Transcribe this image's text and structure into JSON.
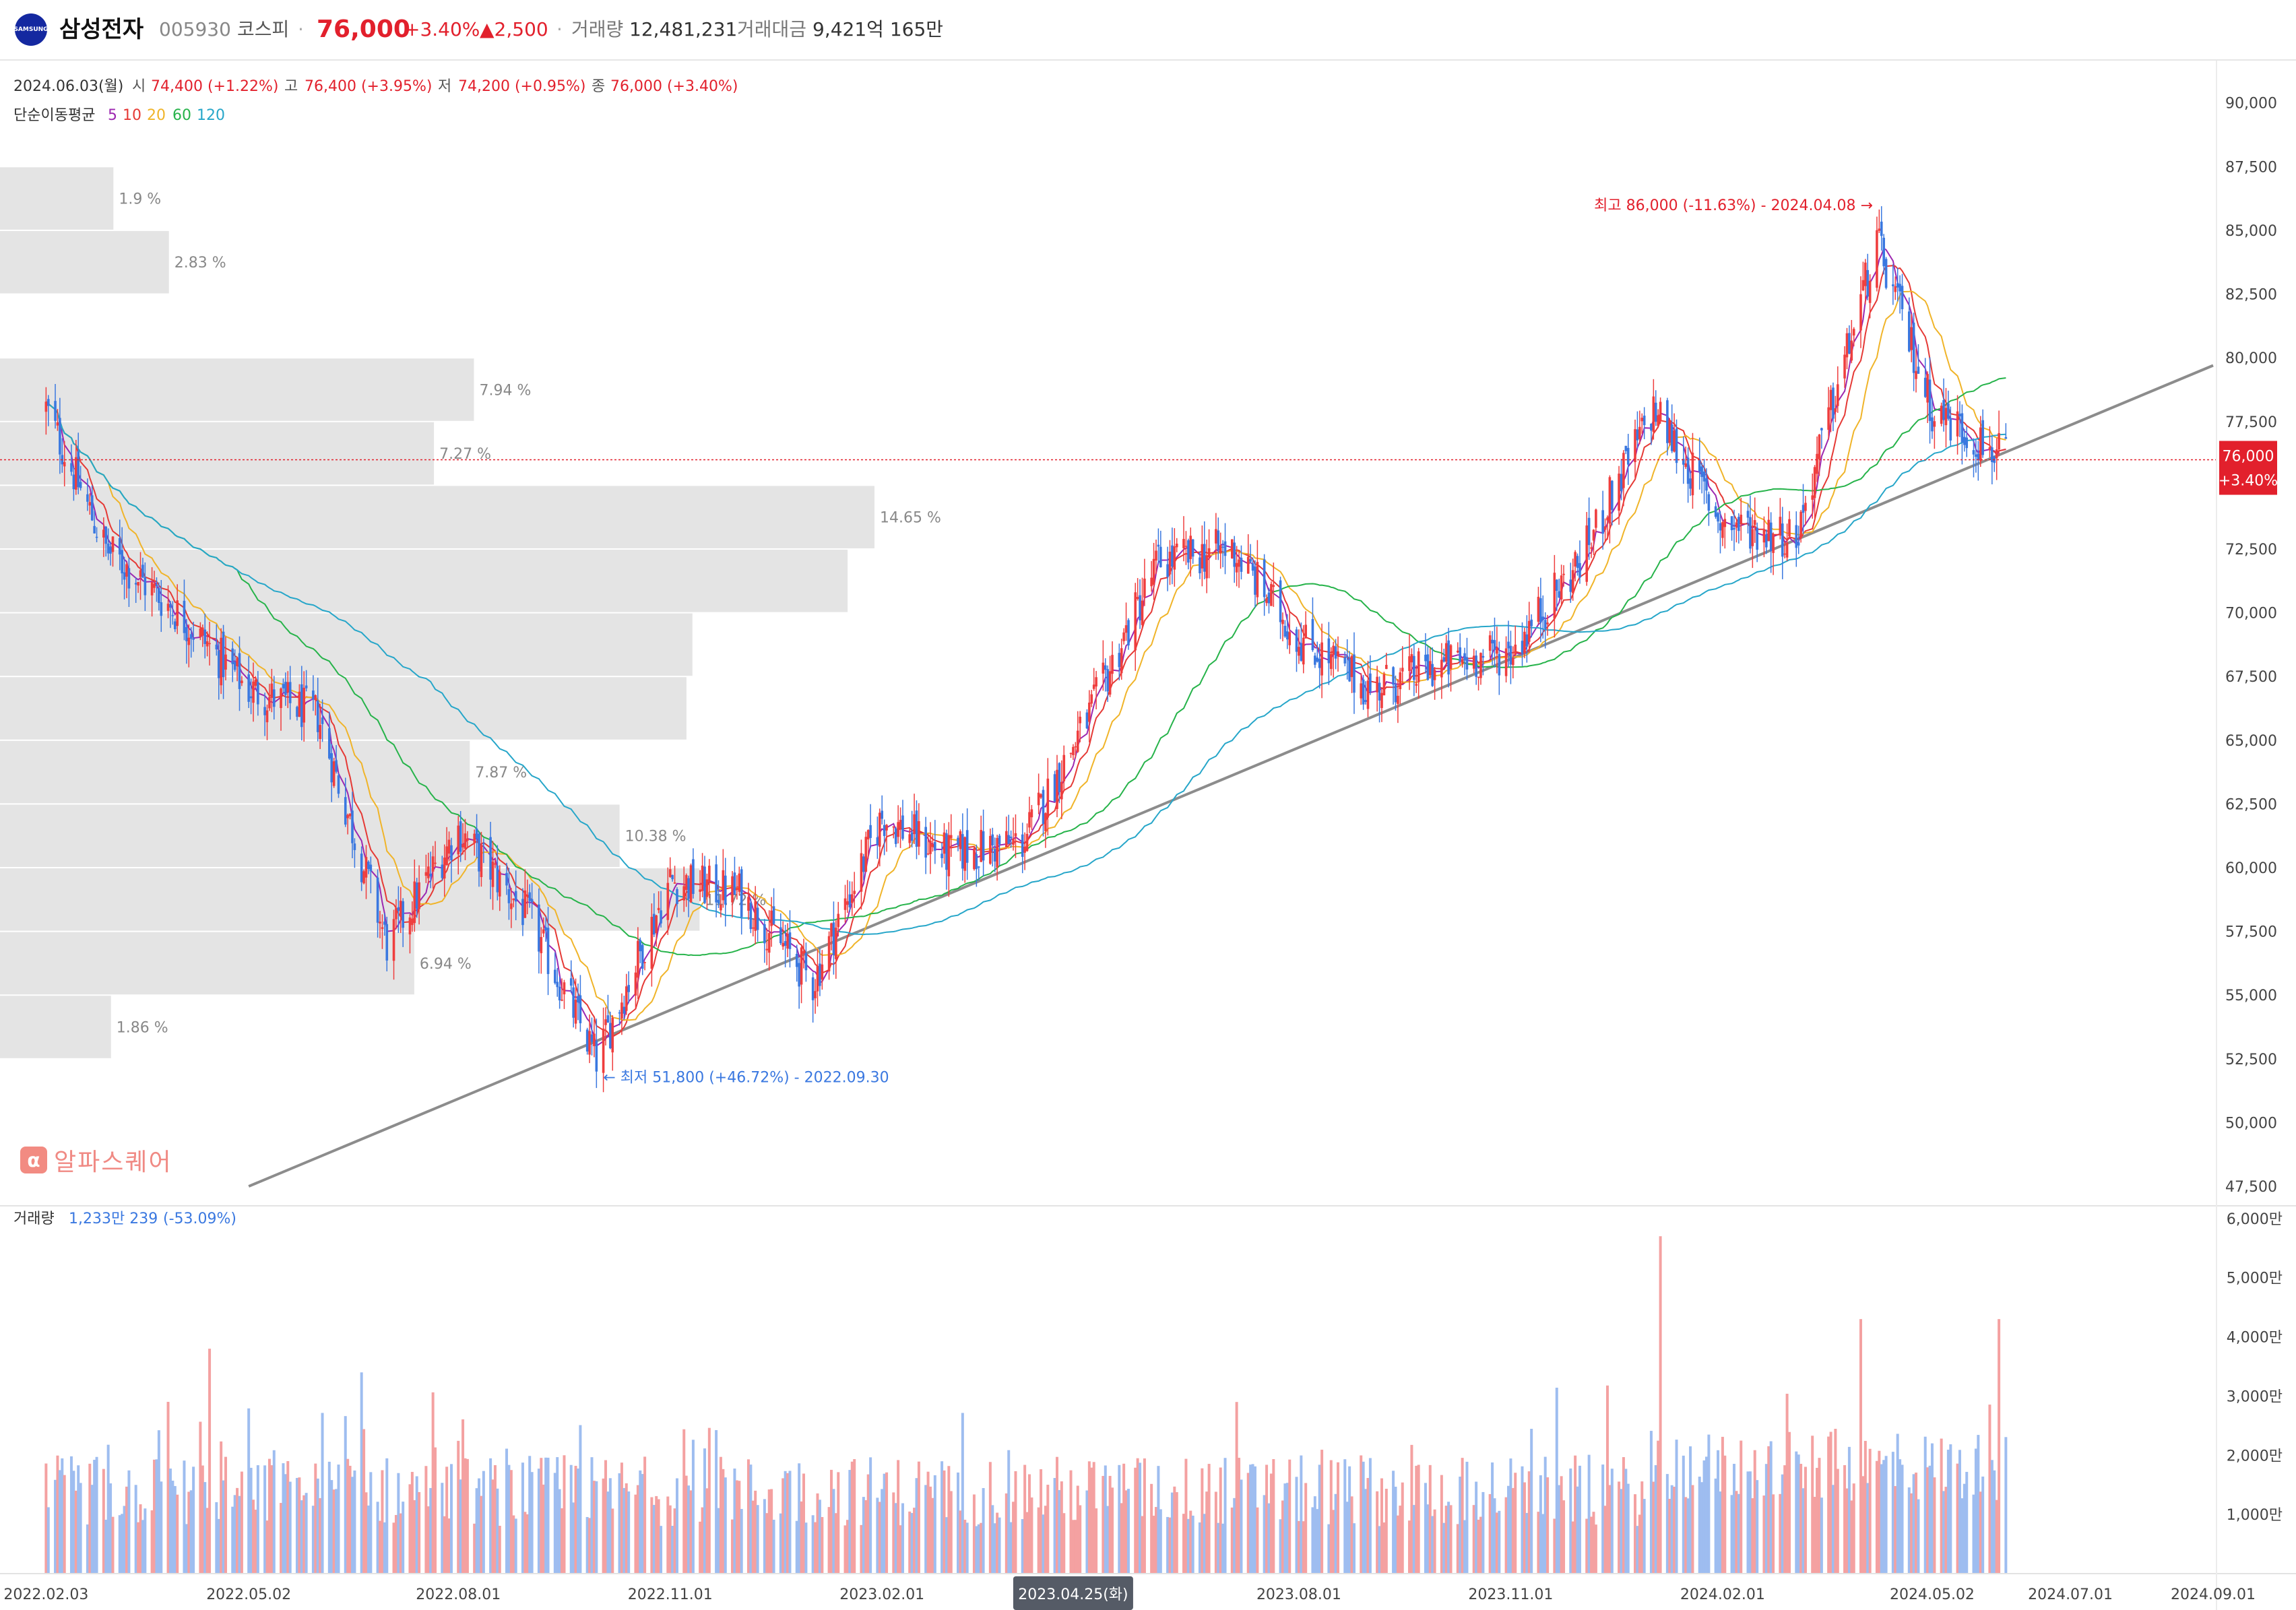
{
  "header": {
    "logo_text": "SAMSUNG",
    "name": "삼성전자",
    "code": "005930",
    "market": "코스피",
    "separator": "·",
    "price": "76,000",
    "change_rate": "+3.40%",
    "change": "▲2,500",
    "volume_label": "거래량",
    "volume": "12,481,231",
    "amount_label": "거래대금",
    "amount": "9,421억 165만"
  },
  "ohlc": {
    "date": "2024.06.03(월)",
    "open_label": "시",
    "open": "74,400 (+1.22%)",
    "high_label": "고",
    "high": "76,400 (+3.95%)",
    "low_label": "저",
    "low": "74,200 (+0.95%)",
    "close_label": "종",
    "close": "76,000 (+3.40%)"
  },
  "ma_legend": {
    "label": "단순이동평균",
    "items": [
      {
        "period": "5",
        "color": "#9c27b0"
      },
      {
        "period": "10",
        "color": "#e53935"
      },
      {
        "period": "20",
        "color": "#f0b429"
      },
      {
        "period": "60",
        "color": "#26b34a"
      },
      {
        "period": "120",
        "color": "#26a6c9"
      }
    ]
  },
  "volume_legend": {
    "label": "거래량",
    "value": "1,233만 239",
    "rate": "(-53.09%)"
  },
  "watermark": {
    "mark": "α",
    "text": "알파스퀘어"
  },
  "current_price_label": {
    "price": "76,000",
    "rate": "+3.40%"
  },
  "crosshair_date_label": "2023.04.25(화)",
  "colors": {
    "up": "#ef3e3e",
    "down": "#3a78e0",
    "up_volume": "#f4a1a1",
    "down_volume": "#9ebdf0",
    "profile": "#e4e4e4",
    "trendline": "#8c8c8c",
    "price_line": "#e2202c"
  },
  "chart_data": {
    "type": "candlestick",
    "price_axis": {
      "min": 47500,
      "max": 90000,
      "ticks": [
        "47,500",
        "50,000",
        "52,500",
        "55,000",
        "57,500",
        "60,000",
        "62,500",
        "65,000",
        "67,500",
        "70,000",
        "72,500",
        "75,000",
        "77,500",
        "80,000",
        "82,500",
        "85,000",
        "87,500",
        "90,000"
      ]
    },
    "time_axis": {
      "ticks": [
        "2022.02.03",
        "2022.05.02",
        "2022.08.01",
        "2022.11.01",
        "2023.02.01",
        "2023.08.01",
        "2023.11.01",
        "2024.02.01",
        "2024.05.02",
        "2024.07.01",
        "2024.09.01"
      ]
    },
    "price_path": [
      [
        "2022.02.03",
        78000
      ],
      [
        "2022.03.01",
        72500
      ],
      [
        "2022.04.01",
        70000
      ],
      [
        "2022.05.02",
        67000
      ],
      [
        "2022.06.01",
        66000
      ],
      [
        "2022.07.01",
        57000
      ],
      [
        "2022.08.01",
        61500
      ],
      [
        "2022.09.01",
        58000
      ],
      [
        "2022.09.30",
        52500
      ],
      [
        "2022.11.01",
        59500
      ],
      [
        "2022.12.01",
        59000
      ],
      [
        "2023.01.02",
        55500
      ],
      [
        "2023.02.01",
        62000
      ],
      [
        "2023.03.01",
        60500
      ],
      [
        "2023.04.03",
        61000
      ],
      [
        "2023.05.02",
        66000
      ],
      [
        "2023.06.01",
        72000
      ],
      [
        "2023.07.03",
        72500
      ],
      [
        "2023.08.01",
        69000
      ],
      [
        "2023.09.01",
        67000
      ],
      [
        "2023.10.04",
        68000
      ],
      [
        "2023.11.01",
        68500
      ],
      [
        "2023.12.01",
        72000
      ],
      [
        "2024.01.02",
        78000
      ],
      [
        "2024.02.01",
        73500
      ],
      [
        "2024.03.04",
        73000
      ],
      [
        "2024.04.08",
        84500
      ],
      [
        "2024.05.02",
        78000
      ],
      [
        "2024.06.03",
        76000
      ]
    ],
    "annotations": {
      "high": "최고 86,000 (-11.63%) - 2024.04.08",
      "low": "최저 51,800 (+46.72%) - 2022.09.30"
    },
    "trendline": {
      "from": [
        "2022.05.02",
        47500
      ],
      "to": [
        "2024.09.01",
        79700
      ]
    },
    "volume_profile": [
      {
        "low": 85000,
        "high": 87500,
        "pct": "1.9 %",
        "share": 1.9
      },
      {
        "low": 82500,
        "high": 85000,
        "pct": "2.83 %",
        "share": 2.83
      },
      {
        "low": 77500,
        "high": 80000,
        "pct": "7.94 %",
        "share": 7.94
      },
      {
        "low": 75000,
        "high": 77500,
        "pct": "7.27 %",
        "share": 7.27
      },
      {
        "low": 72500,
        "high": 75000,
        "pct": "14.65 %",
        "share": 14.65
      },
      {
        "low": 70000,
        "high": 72500,
        "pct": "",
        "share": 14.2
      },
      {
        "low": 67500,
        "high": 70000,
        "pct": "",
        "share": 11.6
      },
      {
        "low": 65000,
        "high": 67500,
        "pct": "",
        "share": 11.5
      },
      {
        "low": 62500,
        "high": 65000,
        "pct": "7.87 %",
        "share": 7.87
      },
      {
        "low": 60000,
        "high": 62500,
        "pct": "10.38 %",
        "share": 10.38
      },
      {
        "low": 57500,
        "high": 60000,
        "pct": "11.72 %",
        "share": 11.72
      },
      {
        "low": 55000,
        "high": 57500,
        "pct": "6.94 %",
        "share": 6.94
      },
      {
        "low": 52500,
        "high": 55000,
        "pct": "1.86 %",
        "share": 1.86
      }
    ],
    "volume_axis": {
      "min": 0,
      "max": 60000000,
      "ticks": [
        "1,000만",
        "2,000만",
        "3,000만",
        "4,000만",
        "5,000만",
        "6,000만"
      ]
    },
    "volume_spikes": [
      [
        "2022.04.15",
        38000000
      ],
      [
        "2022.06.20",
        34000000
      ],
      [
        "2023.07.05",
        29000000
      ],
      [
        "2024.01.05",
        57000000
      ],
      [
        "2024.04.01",
        43000000
      ],
      [
        "2024.05.31",
        43000000
      ]
    ]
  }
}
